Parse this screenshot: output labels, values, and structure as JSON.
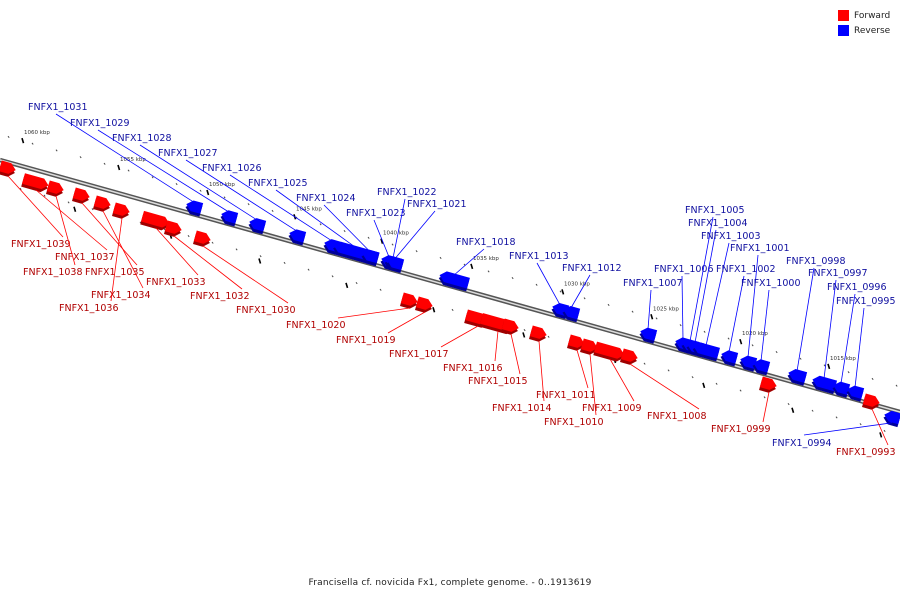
{
  "legend": {
    "forward_label": "Forward",
    "reverse_label": "Reverse",
    "forward_color": "#ff0000",
    "reverse_color": "#0000ff"
  },
  "caption": "Francisella cf. novicida Fx1, complete genome. - 0..1913619",
  "scale_labels": [
    "1060 kbp",
    "1055 kbp",
    "1050 kbp",
    "1045 kbp",
    "1040 kbp",
    "1035 kbp",
    "1030 kbp",
    "1025 kbp",
    "1020 kbp",
    "1015 kbp"
  ],
  "genes": {
    "reverse": [
      "FNFX1_1031",
      "FNFX1_1029",
      "FNFX1_1028",
      "FNFX1_1027",
      "FNFX1_1026",
      "FNFX1_1025",
      "FNFX1_1024",
      "FNFX1_1023",
      "FNFX1_1022",
      "FNFX1_1021",
      "FNFX1_1018",
      "FNFX1_1013",
      "FNFX1_1012",
      "FNFX1_1007",
      "FNFX1_1006",
      "FNFX1_1005",
      "FNFX1_1004",
      "FNFX1_1003",
      "FNFX1_1002",
      "FNFX1_1001",
      "FNFX1_1000",
      "FNFX1_0998",
      "FNFX1_0997",
      "FNFX1_0996",
      "FNFX1_0995",
      "FNFX1_0994"
    ],
    "forward": [
      "FNFX1_1039",
      "FNFX1_1037",
      "FNFX1_1038",
      "FNFX1_1035",
      "FNFX1_1034",
      "FNFX1_1036",
      "FNFX1_1033",
      "FNFX1_1032",
      "FNFX1_1030",
      "FNFX1_1020",
      "FNFX1_1019",
      "FNFX1_1017",
      "FNFX1_1016",
      "FNFX1_1015",
      "FNFX1_1014",
      "FNFX1_1011",
      "FNFX1_1010",
      "FNFX1_1009",
      "FNFX1_1008",
      "FNFX1_0999",
      "FNFX1_0993"
    ]
  }
}
